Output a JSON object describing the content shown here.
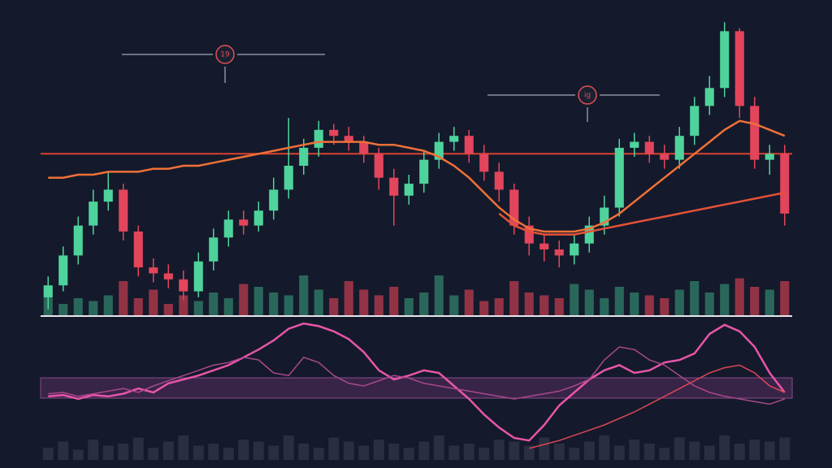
{
  "chart_data": {
    "type": "candlestick",
    "ylim": [
      0,
      100
    ],
    "open": [
      6,
      10,
      20,
      30,
      38,
      42,
      28,
      16,
      14,
      12,
      8,
      18,
      26,
      32,
      30,
      35,
      42,
      50,
      56,
      62,
      60,
      58,
      54,
      46,
      40,
      44,
      52,
      58,
      60,
      54,
      48,
      42,
      30,
      24,
      22,
      20,
      24,
      30,
      36,
      56,
      58,
      54,
      52,
      60,
      70,
      76,
      95,
      70,
      52,
      54
    ],
    "high": [
      13,
      23,
      33,
      42,
      48,
      44,
      30,
      19,
      17,
      15,
      21,
      29,
      35,
      35,
      38,
      46,
      66,
      59,
      65,
      64,
      63,
      60,
      56,
      49,
      47,
      55,
      61,
      63,
      62,
      57,
      51,
      44,
      33,
      27,
      25,
      27,
      33,
      40,
      59,
      61,
      60,
      57,
      63,
      73,
      80,
      98,
      96,
      73,
      57,
      57
    ],
    "low": [
      2,
      8,
      17,
      27,
      35,
      25,
      13,
      11,
      9,
      5,
      6,
      15,
      23,
      27,
      28,
      32,
      39,
      47,
      53,
      57,
      55,
      51,
      42,
      30,
      37,
      41,
      49,
      55,
      51,
      45,
      38,
      27,
      20,
      18,
      16,
      17,
      21,
      27,
      33,
      53,
      51,
      49,
      49,
      57,
      67,
      73,
      66,
      49,
      47,
      30
    ],
    "close": [
      10,
      20,
      30,
      38,
      42,
      28,
      16,
      14,
      12,
      8,
      18,
      26,
      32,
      30,
      35,
      42,
      50,
      56,
      62,
      60,
      58,
      54,
      46,
      40,
      44,
      52,
      58,
      60,
      54,
      48,
      42,
      30,
      24,
      22,
      20,
      24,
      30,
      36,
      56,
      58,
      54,
      52,
      60,
      70,
      76,
      95,
      70,
      52,
      54,
      34
    ],
    "up_color": "#4fd39c",
    "down_color": "#e3455c",
    "level": 54,
    "level_color": "#d9412f",
    "lines": [
      {
        "color": "#f07038",
        "values": [
          46,
          46,
          47,
          47,
          48,
          48,
          48,
          49,
          49,
          50,
          50,
          51,
          52,
          53,
          54,
          55,
          56,
          57,
          58,
          58,
          58,
          58,
          57,
          57,
          56,
          55,
          53,
          50,
          46,
          41,
          36,
          32,
          29,
          28,
          28,
          28,
          29,
          31,
          34,
          38,
          42,
          46,
          50,
          54,
          58,
          62,
          65,
          64,
          62,
          60
        ]
      },
      {
        "color": "#e4513a",
        "values": [
          null,
          null,
          null,
          null,
          null,
          null,
          null,
          null,
          null,
          null,
          null,
          null,
          null,
          null,
          null,
          null,
          null,
          null,
          null,
          null,
          null,
          null,
          null,
          null,
          null,
          null,
          null,
          null,
          null,
          null,
          34,
          30,
          28,
          27,
          27,
          27,
          28,
          29,
          30,
          31,
          32,
          33,
          34,
          35,
          36,
          37,
          38,
          39,
          40,
          41
        ]
      }
    ],
    "volume": {
      "ylim": [
        0,
        100
      ],
      "values": [
        40,
        20,
        30,
        25,
        35,
        60,
        30,
        45,
        20,
        35,
        25,
        40,
        30,
        55,
        50,
        40,
        35,
        70,
        45,
        30,
        60,
        45,
        35,
        50,
        30,
        40,
        70,
        35,
        45,
        25,
        30,
        60,
        40,
        35,
        30,
        55,
        45,
        30,
        50,
        40,
        35,
        30,
        45,
        60,
        40,
        55,
        65,
        50,
        45,
        60
      ]
    },
    "oscillator": {
      "ylim": [
        0,
        100
      ],
      "series": [
        {
          "color": "#e755a8",
          "values": [
            42,
            43,
            40,
            43,
            42,
            44,
            48,
            45,
            52,
            55,
            58,
            62,
            66,
            72,
            78,
            85,
            94,
            98,
            96,
            92,
            86,
            76,
            62,
            55,
            58,
            62,
            60,
            50,
            40,
            28,
            18,
            10,
            8,
            20,
            35,
            45,
            55,
            62,
            66,
            60,
            62,
            68,
            70,
            75,
            90,
            97,
            92,
            80,
            60,
            45
          ]
        },
        {
          "color": "#a8478c",
          "values": [
            44,
            45,
            42,
            44,
            46,
            48,
            45,
            50,
            54,
            58,
            62,
            66,
            68,
            72,
            70,
            60,
            58,
            72,
            68,
            58,
            52,
            50,
            54,
            58,
            56,
            52,
            50,
            48,
            46,
            44,
            42,
            40,
            42,
            44,
            46,
            50,
            55,
            70,
            80,
            78,
            70,
            66,
            58,
            50,
            45,
            42,
            40,
            38,
            36,
            40
          ]
        },
        {
          "color": "#d94656",
          "values": [
            null,
            null,
            null,
            null,
            null,
            null,
            null,
            null,
            null,
            null,
            null,
            null,
            null,
            null,
            null,
            null,
            null,
            null,
            null,
            null,
            null,
            null,
            null,
            null,
            null,
            null,
            null,
            null,
            null,
            null,
            null,
            null,
            2,
            5,
            8,
            12,
            16,
            20,
            25,
            30,
            36,
            42,
            48,
            54,
            60,
            64,
            66,
            60,
            50,
            45
          ]
        }
      ],
      "volume": [
        30,
        45,
        25,
        50,
        35,
        40,
        55,
        30,
        45,
        60,
        35,
        40,
        30,
        50,
        45,
        35,
        60,
        40,
        30,
        55,
        45,
        35,
        50,
        40,
        30,
        45,
        60,
        35,
        40,
        30,
        50,
        45,
        35,
        55,
        40,
        30,
        45,
        60,
        35,
        50,
        40,
        30,
        55,
        45,
        35,
        60,
        40,
        50,
        45,
        55
      ]
    },
    "annotations": [
      {
        "text": "19"
      },
      {
        "text": "ig"
      }
    ]
  }
}
